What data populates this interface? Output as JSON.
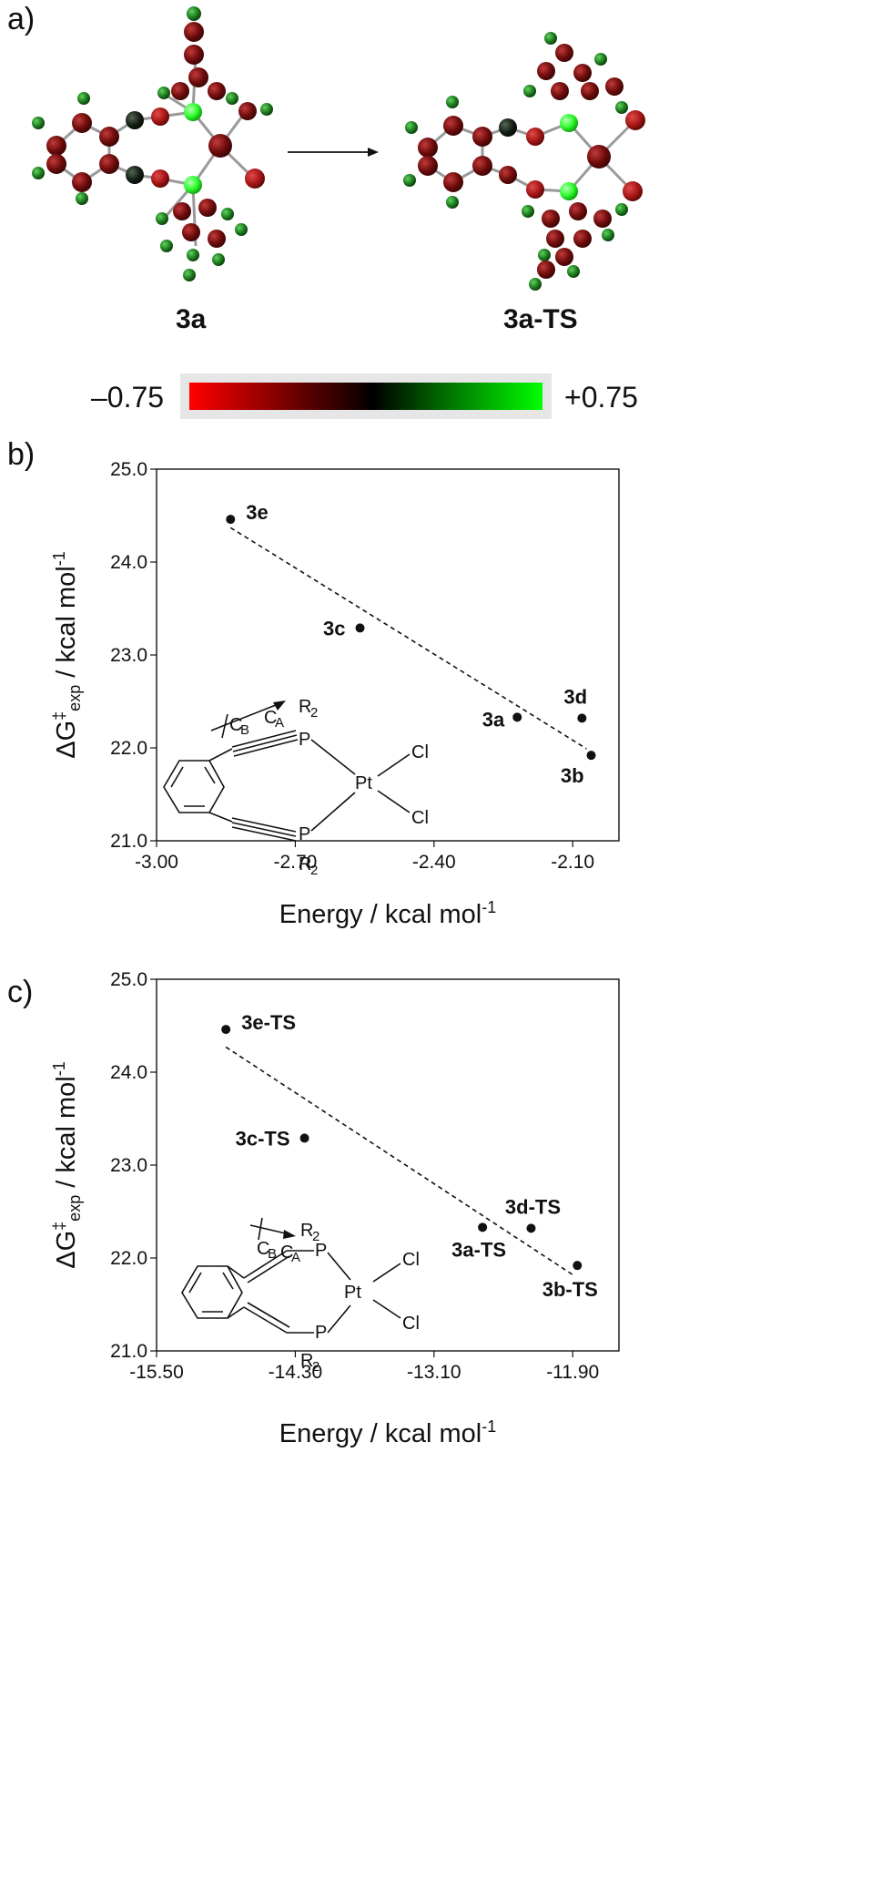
{
  "panels": {
    "a": "a)",
    "b": "b)",
    "c": "c)"
  },
  "molecules": {
    "reactant": "3a",
    "transition_state": "3a-TS",
    "arrow_icon": "right-arrow-icon"
  },
  "colorbar": {
    "min_label": "–0.75",
    "max_label": "+0.75",
    "min_color": "#ff0000",
    "mid_color": "#000000",
    "max_color": "#00ff00"
  },
  "structure_labels": {
    "r2": "R",
    "r2_sub": "2",
    "p": "P",
    "pt": "Pt",
    "cl": "Cl",
    "cb": "C",
    "cb_sub": "B",
    "ca": "C",
    "ca_sub": "A"
  },
  "chart_data": [
    {
      "type": "scatter",
      "panel": "b)",
      "ylabel": {
        "main": "ΔG",
        "sup": "‡",
        "sub": "exp",
        "rest": " / kcal mol",
        "unit_sup": "-1"
      },
      "xlabel": {
        "main": "Energy / kcal mol",
        "sup": "-1"
      },
      "xlim": [
        -3.0,
        -2.0
      ],
      "ylim": [
        21.0,
        25.0
      ],
      "xticks": [
        -3.0,
        -2.7,
        -2.4,
        -2.1
      ],
      "xtick_labels": [
        "-3.00",
        "-2.70",
        "-2.40",
        "-2.10"
      ],
      "yticks": [
        21.0,
        22.0,
        23.0,
        24.0,
        25.0
      ],
      "ytick_labels": [
        "21.0",
        "22.0",
        "23.0",
        "24.0",
        "25.0"
      ],
      "points": [
        {
          "label": "3e",
          "x": -2.84,
          "y": 24.46
        },
        {
          "label": "3c",
          "x": -2.56,
          "y": 23.29
        },
        {
          "label": "3a",
          "x": -2.22,
          "y": 22.33
        },
        {
          "label": "3d",
          "x": -2.08,
          "y": 22.32
        },
        {
          "label": "3b",
          "x": -2.06,
          "y": 21.92
        }
      ],
      "trendline": {
        "x": [
          -2.84,
          -2.07
        ],
        "y": [
          24.37,
          21.99
        ]
      }
    },
    {
      "type": "scatter",
      "panel": "c)",
      "ylabel": {
        "main": "ΔG",
        "sup": "‡",
        "sub": "exp",
        "rest": " / kcal mol",
        "unit_sup": "-1"
      },
      "xlabel": {
        "main": "Energy / kcal mol",
        "sup": "-1"
      },
      "xlim": [
        -15.5,
        -11.5
      ],
      "ylim": [
        21.0,
        25.0
      ],
      "xticks": [
        -15.5,
        -14.3,
        -13.1,
        -11.9
      ],
      "xtick_labels": [
        "-15.50",
        "-14.30",
        "-13.10",
        "-11.90"
      ],
      "yticks": [
        21.0,
        22.0,
        23.0,
        24.0,
        25.0
      ],
      "ytick_labels": [
        "21.0",
        "22.0",
        "23.0",
        "24.0",
        "25.0"
      ],
      "points": [
        {
          "label": "3e-TS",
          "x": -14.9,
          "y": 24.46
        },
        {
          "label": "3c-TS",
          "x": -14.22,
          "y": 23.29
        },
        {
          "label": "3a-TS",
          "x": -12.68,
          "y": 22.33
        },
        {
          "label": "3d-TS",
          "x": -12.26,
          "y": 22.32
        },
        {
          "label": "3b-TS",
          "x": -11.86,
          "y": 21.92
        }
      ],
      "trendline": {
        "x": [
          -14.9,
          -11.9
        ],
        "y": [
          24.27,
          21.82
        ]
      }
    }
  ]
}
